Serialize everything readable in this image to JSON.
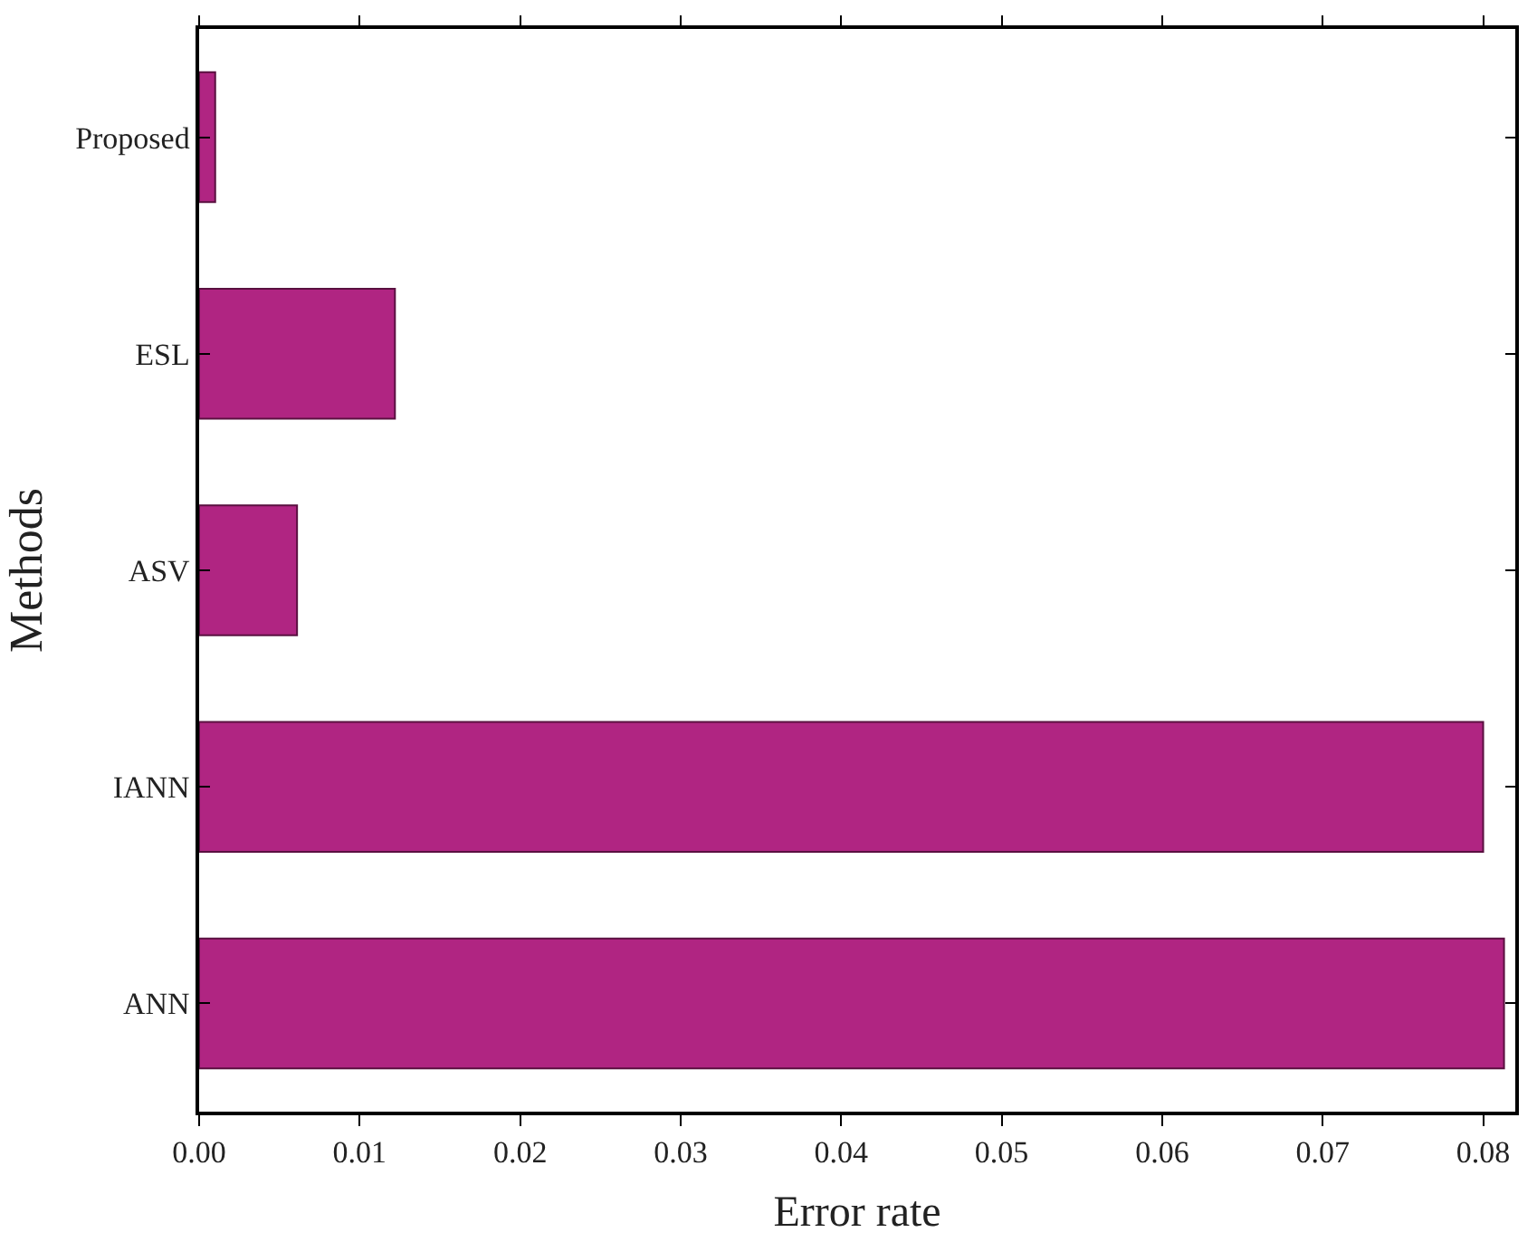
{
  "chart_data": {
    "type": "bar",
    "orientation": "horizontal",
    "xlabel": "Error rate",
    "ylabel": "Methods",
    "categories": [
      "Proposed",
      "ESL",
      "ASV",
      "IANN",
      "ANN"
    ],
    "values": [
      0.001,
      0.0122,
      0.0061,
      0.08,
      0.0813
    ],
    "color": "#b02582",
    "xlim": [
      0,
      0.082
    ],
    "xticks": [
      {
        "value": 0,
        "label": "0.00"
      },
      {
        "value": 0.01,
        "label": "0.01"
      },
      {
        "value": 0.02,
        "label": "0.02"
      },
      {
        "value": 0.03,
        "label": "0.03"
      },
      {
        "value": 0.04,
        "label": "0.04"
      },
      {
        "value": 0.05,
        "label": "0.05"
      },
      {
        "value": 0.06,
        "label": "0.06"
      },
      {
        "value": 0.07,
        "label": "0.07"
      },
      {
        "value": 0.08,
        "label": "0.08"
      }
    ]
  }
}
